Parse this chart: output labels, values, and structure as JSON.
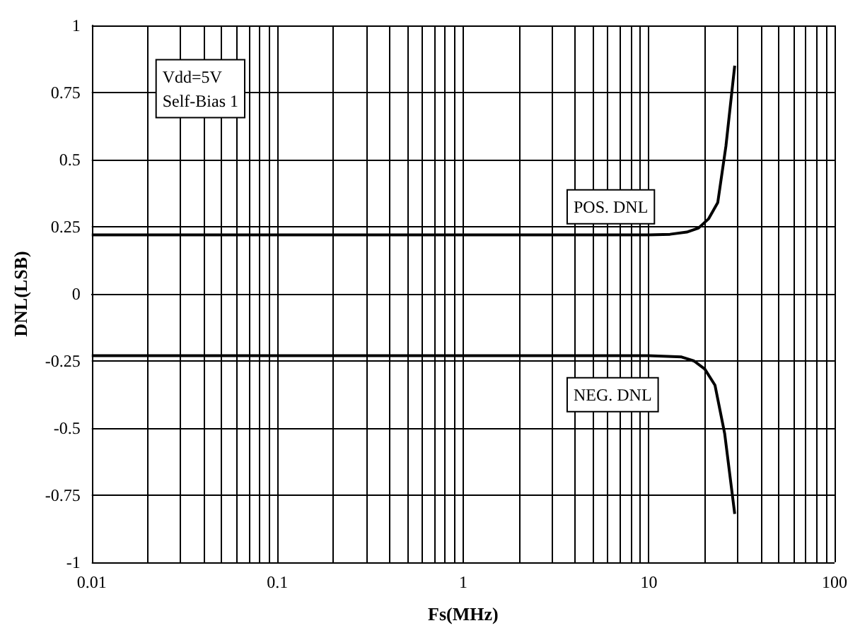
{
  "chart_data": {
    "type": "line",
    "xlabel": "Fs(MHz)",
    "ylabel": "DNL(LSB)",
    "log": "x",
    "xlim": [
      0.01,
      100
    ],
    "xticks": [
      0.01,
      0.1,
      1,
      10,
      100
    ],
    "ylim": [
      -1,
      1
    ],
    "yticks": [
      -1,
      -0.75,
      -0.5,
      -0.25,
      0,
      0.25,
      0.5,
      0.75,
      1
    ],
    "grid": true,
    "legend": false,
    "marker": "none",
    "line_style": "solid",
    "annotations": [
      "Vdd=5V\nSelf-Bias 1"
    ],
    "series": [
      {
        "name": "POS. DNL",
        "color": "#000000",
        "x": [
          0.01,
          10,
          13,
          16,
          18.5,
          21,
          23.5,
          26,
          29
        ],
        "values": [
          0.22,
          0.22,
          0.222,
          0.23,
          0.245,
          0.28,
          0.34,
          0.55,
          0.85
        ]
      },
      {
        "name": "NEG. DNL",
        "color": "#000000",
        "x": [
          0.01,
          10,
          15,
          17.5,
          20,
          22.7,
          25.6,
          29
        ],
        "values": [
          -0.23,
          -0.23,
          -0.235,
          -0.25,
          -0.28,
          -0.34,
          -0.52,
          -0.82
        ]
      }
    ]
  }
}
